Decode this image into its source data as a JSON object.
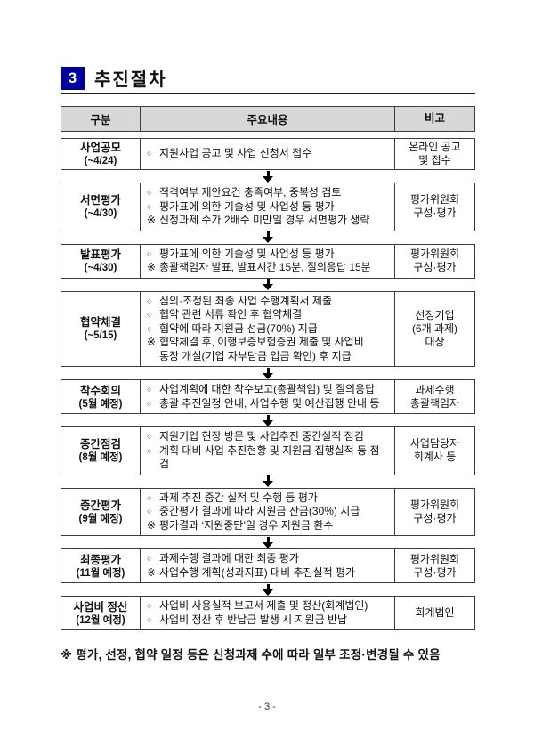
{
  "section": {
    "number": "3",
    "title": "추진절차"
  },
  "table": {
    "headers": [
      "구분",
      "주요내용",
      "비고"
    ],
    "rows": [
      {
        "stage": "사업공모",
        "date": "(~4/24)",
        "lines": [
          {
            "bullet": "○",
            "text": "지원사업 공고 및 사업 신청서 접수"
          }
        ],
        "remark": "온라인 공고\n및 접수"
      },
      {
        "stage": "서면평가",
        "date": "(~4/30)",
        "lines": [
          {
            "bullet": "○",
            "text": "적격여부 제안요건 충족여부, 중복성 검토"
          },
          {
            "bullet": "○",
            "text": "평가표에 의한 기술성 및 사업성 등 평가"
          },
          {
            "bullet": "※",
            "text": "신청과제 수가 2배수 미만일 경우 서면평가 생략"
          }
        ],
        "remark": "평가위원회\n구성·평가"
      },
      {
        "stage": "발표평가",
        "date": "(~4/30)",
        "lines": [
          {
            "bullet": "○",
            "text": "평가표에 의한 기술성 및 사업성 등 평가"
          },
          {
            "bullet": "※",
            "text": "총괄책임자 발표, 발표시간 15분, 질의응답 15분"
          }
        ],
        "remark": "평가위원회\n구성·평가"
      },
      {
        "stage": "협약체결",
        "date": "(~5/15)",
        "lines": [
          {
            "bullet": "○",
            "text": "심의·조정된 최종 사업 수행계획서 제출"
          },
          {
            "bullet": "○",
            "text": "협약 관련 서류 확인 후 협약체결"
          },
          {
            "bullet": "○",
            "text": "협약에 따라 지원금 선금(70%) 지급"
          },
          {
            "bullet": "※",
            "text": "협약체결 후, 이행보증보험증권 제출 및 사업비"
          },
          {
            "bullet": "",
            "text": "통장 개설(기업 자부담금 입금 확인) 후 지급"
          }
        ],
        "remark": "선정기업\n(6개 과제)\n대상"
      },
      {
        "stage": "착수회의",
        "date": "(5월 예정)",
        "lines": [
          {
            "bullet": "○",
            "text": "사업계획에 대한 착수보고(총괄책임) 및 질의응답"
          },
          {
            "bullet": "○",
            "text": "총괄 추진일정 안내, 사업수행 및 예산집행 안내 등"
          }
        ],
        "remark": "과제수행\n총괄책임자"
      },
      {
        "stage": "중간점검",
        "date": "(8월 예정)",
        "lines": [
          {
            "bullet": "○",
            "text": "지원기업 현장 방문 및 사업추진 중간실적 점검"
          },
          {
            "bullet": "○",
            "text": "계획 대비 사업 추진현황 및 지원금 집행실적 등 점검"
          }
        ],
        "remark": "사업담당자\n회계사 등"
      },
      {
        "stage": "중간평가",
        "date": "(9월 예정)",
        "lines": [
          {
            "bullet": "○",
            "text": "과제 추진 중간 실적 및 수행 등 평가"
          },
          {
            "bullet": "○",
            "text": "중간평가 결과에 따라 지원금 잔금(30%) 지급"
          },
          {
            "bullet": "※",
            "text": "평가결과 ‘지원중단’일 경우 지원금 환수"
          }
        ],
        "remark": "평가위원회\n구성·평가"
      },
      {
        "stage": "최종평가",
        "date": "(11월 예정)",
        "lines": [
          {
            "bullet": "○",
            "text": "과제수행 결과에 대한 최종 평가"
          },
          {
            "bullet": "※",
            "text": "사업수행 계획(성과지표) 대비 추진실적 평가"
          }
        ],
        "remark": "평가위원회\n구성·평가"
      },
      {
        "stage": "사업비 정산",
        "date": "(12월 예정)",
        "lines": [
          {
            "bullet": "○",
            "text": "사업비 사용실적 보고서 제출 및 정산(회계법인)"
          },
          {
            "bullet": "○",
            "text": "사업비 정산 후 반납금 발생 시 지원금 반납"
          }
        ],
        "remark": "회계법인"
      }
    ]
  },
  "connector_icon": "down-arrow",
  "footnote": "※ 평가, 선정, 협약 일정 등은 신청과제 수에 따라 일부 조정·변경될 수 있음",
  "page_number": "- 3 -",
  "colors": {
    "section_badge": "#0000A0",
    "header_fill": "#d8d8d8",
    "border": "#3c3c3c"
  }
}
